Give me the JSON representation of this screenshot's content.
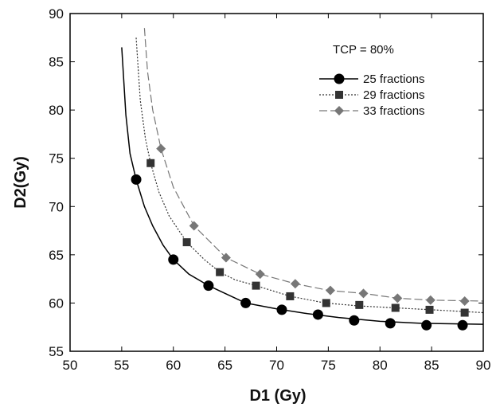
{
  "chart_data": {
    "type": "line",
    "title": "",
    "xlabel": "D1 (Gy)",
    "ylabel": "D2(Gy)",
    "xlim": [
      50,
      90
    ],
    "ylim": [
      55,
      90
    ],
    "xticks": [
      50,
      55,
      60,
      65,
      70,
      75,
      80,
      85,
      90
    ],
    "yticks": [
      55,
      60,
      65,
      70,
      75,
      80,
      85,
      90
    ],
    "grid": false,
    "legend_position": "top-right",
    "annotation": "TCP = 80%",
    "series": [
      {
        "name": "25 fractions",
        "line_style": "solid",
        "marker": "circle",
        "color": "#000000",
        "line": [
          [
            55.0,
            86.5
          ],
          [
            55.4,
            79.5
          ],
          [
            55.8,
            75.5
          ],
          [
            56.4,
            72.8
          ],
          [
            57.2,
            70.0
          ],
          [
            58.0,
            68.0
          ],
          [
            59.0,
            66.0
          ],
          [
            60.0,
            64.5
          ],
          [
            61.5,
            63.0
          ],
          [
            63.4,
            61.8
          ],
          [
            65.0,
            61.0
          ],
          [
            67.0,
            60.0
          ],
          [
            70.0,
            59.4
          ],
          [
            73.0,
            58.9
          ],
          [
            76.0,
            58.5
          ],
          [
            80.0,
            58.1
          ],
          [
            84.0,
            57.9
          ],
          [
            90.0,
            57.8
          ]
        ],
        "points": [
          [
            56.4,
            72.8
          ],
          [
            60.0,
            64.5
          ],
          [
            63.4,
            61.8
          ],
          [
            67.0,
            60.0
          ],
          [
            70.5,
            59.3
          ],
          [
            74.0,
            58.8
          ],
          [
            77.5,
            58.2
          ],
          [
            81.0,
            57.9
          ],
          [
            84.5,
            57.7
          ],
          [
            88.0,
            57.7
          ]
        ]
      },
      {
        "name": "29 fractions",
        "line_style": "dotted",
        "marker": "square",
        "color": "#333333",
        "line": [
          [
            56.4,
            87.5
          ],
          [
            56.8,
            81.0
          ],
          [
            57.3,
            77.0
          ],
          [
            57.8,
            74.5
          ],
          [
            58.6,
            71.5
          ],
          [
            59.6,
            69.0
          ],
          [
            61.3,
            66.3
          ],
          [
            63.0,
            64.5
          ],
          [
            64.5,
            63.2
          ],
          [
            66.0,
            62.4
          ],
          [
            68.0,
            61.8
          ],
          [
            71.3,
            60.7
          ],
          [
            74.7,
            60.0
          ],
          [
            78.0,
            59.7
          ],
          [
            81.5,
            59.5
          ],
          [
            85.0,
            59.3
          ],
          [
            90.0,
            59.0
          ]
        ],
        "points": [
          [
            57.8,
            74.5
          ],
          [
            61.3,
            66.3
          ],
          [
            64.5,
            63.2
          ],
          [
            68.0,
            61.8
          ],
          [
            71.3,
            60.7
          ],
          [
            74.8,
            60.0
          ],
          [
            78.0,
            59.8
          ],
          [
            81.5,
            59.5
          ],
          [
            84.8,
            59.3
          ],
          [
            88.2,
            59.0
          ]
        ]
      },
      {
        "name": "33 fractions",
        "line_style": "dashed",
        "marker": "diamond",
        "color": "#777777",
        "line": [
          [
            57.2,
            88.5
          ],
          [
            57.5,
            84.0
          ],
          [
            58.0,
            80.0
          ],
          [
            58.8,
            76.0
          ],
          [
            60.0,
            72.0
          ],
          [
            62.0,
            68.0
          ],
          [
            65.1,
            64.7
          ],
          [
            68.4,
            63.0
          ],
          [
            71.8,
            62.0
          ],
          [
            75.1,
            61.3
          ],
          [
            78.4,
            61.0
          ],
          [
            81.7,
            60.5
          ],
          [
            85.0,
            60.3
          ],
          [
            90.0,
            60.2
          ]
        ],
        "points": [
          [
            58.8,
            76.0
          ],
          [
            62.0,
            68.0
          ],
          [
            65.1,
            64.7
          ],
          [
            68.4,
            63.0
          ],
          [
            71.8,
            62.0
          ],
          [
            75.2,
            61.3
          ],
          [
            78.4,
            61.0
          ],
          [
            81.7,
            60.5
          ],
          [
            84.9,
            60.3
          ],
          [
            88.2,
            60.2
          ]
        ]
      }
    ]
  }
}
